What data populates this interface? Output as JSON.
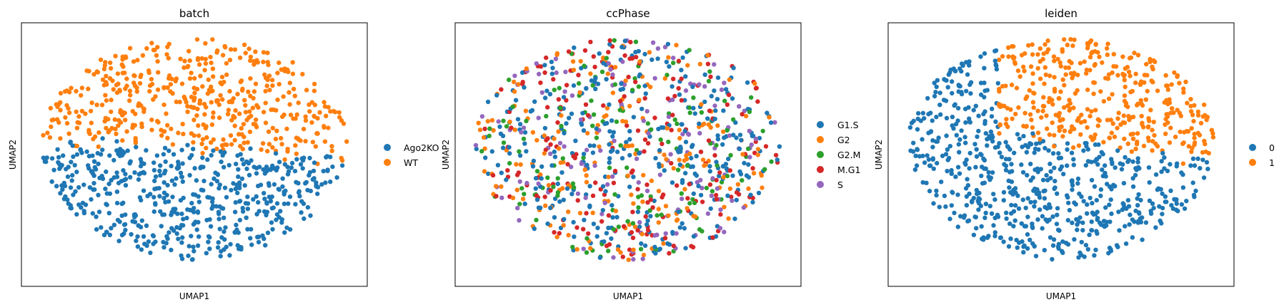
{
  "chart_data": [
    {
      "type": "scatter",
      "title": "batch",
      "xlabel": "UMAP1",
      "ylabel": "UMAP2",
      "xticks": [],
      "yticks": [],
      "xlim": [
        0,
        1
      ],
      "ylim": [
        0,
        1
      ],
      "grid": false,
      "legend_position": "right",
      "coloring": "batch_split",
      "split_threshold": 0.52,
      "point_count": 1000,
      "series": [
        {
          "name": "Ago2KO",
          "color": "#1f77b4",
          "region": "lower"
        },
        {
          "name": "WT",
          "color": "#ff7f0e",
          "region": "upper"
        }
      ]
    },
    {
      "type": "scatter",
      "title": "ccPhase",
      "xlabel": "UMAP1",
      "ylabel": "UMAP2",
      "xticks": [],
      "yticks": [],
      "xlim": [
        0,
        1
      ],
      "ylim": [
        0,
        1
      ],
      "grid": false,
      "legend_position": "right",
      "coloring": "mixed",
      "point_count": 1000,
      "series": [
        {
          "name": "G1.S",
          "color": "#1f77b4",
          "share": 0.32
        },
        {
          "name": "G2",
          "color": "#ff7f0e",
          "share": 0.18
        },
        {
          "name": "G2.M",
          "color": "#2ca02c",
          "share": 0.14
        },
        {
          "name": "M.G1",
          "color": "#d62728",
          "share": 0.2
        },
        {
          "name": "S",
          "color": "#9467bd",
          "share": 0.16
        }
      ]
    },
    {
      "type": "scatter",
      "title": "leiden",
      "xlabel": "UMAP1",
      "ylabel": "UMAP2",
      "xticks": [],
      "yticks": [],
      "xlim": [
        0,
        1
      ],
      "ylim": [
        0,
        1
      ],
      "grid": false,
      "legend_position": "right",
      "coloring": "leiden_split",
      "split_threshold": 0.55,
      "point_count": 1000,
      "series": [
        {
          "name": "0",
          "color": "#1f77b4",
          "region": "lower"
        },
        {
          "name": "1",
          "color": "#ff7f0e",
          "region": "upper"
        }
      ]
    }
  ]
}
